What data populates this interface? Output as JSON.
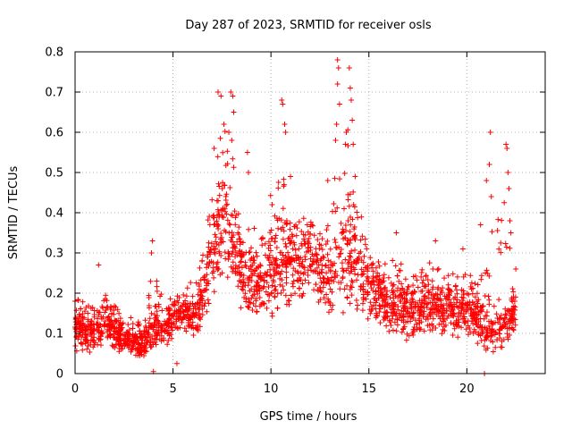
{
  "chart_data": {
    "type": "scatter",
    "title": "Day 287 of 2023, SRMTID for receiver osls",
    "xlabel": "GPS time / hours",
    "ylabel": "SRMTID / TECUs",
    "xlim": [
      0,
      24
    ],
    "ylim": [
      0,
      0.8
    ],
    "x_ticks": [
      0,
      5,
      10,
      15,
      20
    ],
    "x_tick_labels": [
      "0",
      "5",
      "10",
      "15",
      "20"
    ],
    "y_ticks": [
      0,
      0.1,
      0.2,
      0.3,
      0.4,
      0.5,
      0.6,
      0.7,
      0.8
    ],
    "y_tick_labels": [
      "0",
      "0.1",
      "0.2",
      "0.3",
      "0.4",
      "0.5",
      "0.6",
      "0.7",
      "0.8"
    ],
    "grid": true,
    "marker": "+",
    "colors": {
      "points": "#ff0000",
      "grid": "#a0a0a0",
      "axes": "#000000"
    },
    "envelope": {
      "description": "representative band of the plotted point cloud, hours vs TECU",
      "x": [
        0,
        0.5,
        1,
        1.5,
        2,
        2.5,
        3,
        3.5,
        4,
        4.5,
        5,
        5.5,
        6,
        6.5,
        7,
        7.5,
        8,
        8.5,
        9,
        9.5,
        10,
        10.5,
        11,
        11.5,
        12,
        12.5,
        13,
        13.5,
        14,
        14.5,
        15,
        15.5,
        16,
        16.5,
        17,
        17.5,
        18,
        18.5,
        19,
        19.5,
        20,
        20.5,
        21,
        21.5,
        22,
        22.5
      ],
      "low": [
        0.06,
        0.05,
        0.05,
        0.06,
        0.05,
        0.05,
        0.04,
        0.04,
        0.05,
        0.07,
        0.08,
        0.1,
        0.09,
        0.1,
        0.18,
        0.22,
        0.22,
        0.15,
        0.14,
        0.14,
        0.12,
        0.14,
        0.16,
        0.18,
        0.18,
        0.15,
        0.12,
        0.14,
        0.14,
        0.14,
        0.13,
        0.12,
        0.08,
        0.08,
        0.07,
        0.08,
        0.09,
        0.09,
        0.08,
        0.08,
        0.08,
        0.07,
        0.05,
        0.04,
        0.05,
        0.1
      ],
      "mid": [
        0.12,
        0.11,
        0.1,
        0.13,
        0.11,
        0.09,
        0.08,
        0.08,
        0.11,
        0.12,
        0.13,
        0.15,
        0.14,
        0.18,
        0.32,
        0.38,
        0.35,
        0.25,
        0.24,
        0.23,
        0.26,
        0.3,
        0.29,
        0.28,
        0.3,
        0.26,
        0.24,
        0.3,
        0.32,
        0.28,
        0.23,
        0.2,
        0.17,
        0.18,
        0.15,
        0.17,
        0.18,
        0.18,
        0.17,
        0.16,
        0.17,
        0.14,
        0.12,
        0.1,
        0.12,
        0.18
      ],
      "high": [
        0.2,
        0.18,
        0.17,
        0.2,
        0.17,
        0.15,
        0.15,
        0.14,
        0.28,
        0.18,
        0.2,
        0.22,
        0.23,
        0.3,
        0.48,
        0.62,
        0.6,
        0.4,
        0.38,
        0.35,
        0.45,
        0.55,
        0.42,
        0.38,
        0.4,
        0.35,
        0.4,
        0.6,
        0.65,
        0.45,
        0.32,
        0.28,
        0.28,
        0.3,
        0.25,
        0.27,
        0.28,
        0.27,
        0.26,
        0.25,
        0.26,
        0.22,
        0.3,
        0.4,
        0.45,
        0.28
      ]
    },
    "peaks": [
      {
        "x": 1.2,
        "y": 0.27
      },
      {
        "x": 3.95,
        "y": 0.33
      },
      {
        "x": 3.9,
        "y": 0.3
      },
      {
        "x": 7.1,
        "y": 0.56
      },
      {
        "x": 7.3,
        "y": 0.7
      },
      {
        "x": 7.45,
        "y": 0.69
      },
      {
        "x": 7.6,
        "y": 0.62
      },
      {
        "x": 7.95,
        "y": 0.7
      },
      {
        "x": 8.05,
        "y": 0.69
      },
      {
        "x": 8.1,
        "y": 0.65
      },
      {
        "x": 7.85,
        "y": 0.6
      },
      {
        "x": 8.0,
        "y": 0.58
      },
      {
        "x": 8.8,
        "y": 0.55
      },
      {
        "x": 8.85,
        "y": 0.5
      },
      {
        "x": 10.55,
        "y": 0.68
      },
      {
        "x": 10.6,
        "y": 0.67
      },
      {
        "x": 10.7,
        "y": 0.62
      },
      {
        "x": 10.75,
        "y": 0.6
      },
      {
        "x": 11.0,
        "y": 0.49
      },
      {
        "x": 12.9,
        "y": 0.48
      },
      {
        "x": 13.3,
        "y": 0.58
      },
      {
        "x": 13.4,
        "y": 0.78
      },
      {
        "x": 13.45,
        "y": 0.76
      },
      {
        "x": 13.4,
        "y": 0.72
      },
      {
        "x": 13.5,
        "y": 0.67
      },
      {
        "x": 13.35,
        "y": 0.62
      },
      {
        "x": 13.8,
        "y": 0.57
      },
      {
        "x": 13.85,
        "y": 0.6
      },
      {
        "x": 14.0,
        "y": 0.76
      },
      {
        "x": 14.05,
        "y": 0.71
      },
      {
        "x": 14.1,
        "y": 0.68
      },
      {
        "x": 14.15,
        "y": 0.63
      },
      {
        "x": 14.2,
        "y": 0.57
      },
      {
        "x": 14.3,
        "y": 0.49
      },
      {
        "x": 16.4,
        "y": 0.35
      },
      {
        "x": 18.4,
        "y": 0.33
      },
      {
        "x": 19.8,
        "y": 0.31
      },
      {
        "x": 20.7,
        "y": 0.37
      },
      {
        "x": 21.0,
        "y": 0.48
      },
      {
        "x": 21.15,
        "y": 0.52
      },
      {
        "x": 21.2,
        "y": 0.6
      },
      {
        "x": 21.25,
        "y": 0.44
      },
      {
        "x": 22.0,
        "y": 0.57
      },
      {
        "x": 22.05,
        "y": 0.56
      },
      {
        "x": 22.1,
        "y": 0.5
      },
      {
        "x": 22.15,
        "y": 0.46
      },
      {
        "x": 22.2,
        "y": 0.38
      },
      {
        "x": 22.25,
        "y": 0.35
      },
      {
        "x": 22.5,
        "y": 0.26
      },
      {
        "x": 20.9,
        "y": 0.0
      },
      {
        "x": 4.0,
        "y": 0.005
      },
      {
        "x": 5.2,
        "y": 0.025
      },
      {
        "x": 0.0,
        "y": 0.18
      }
    ],
    "seed": 287
  }
}
